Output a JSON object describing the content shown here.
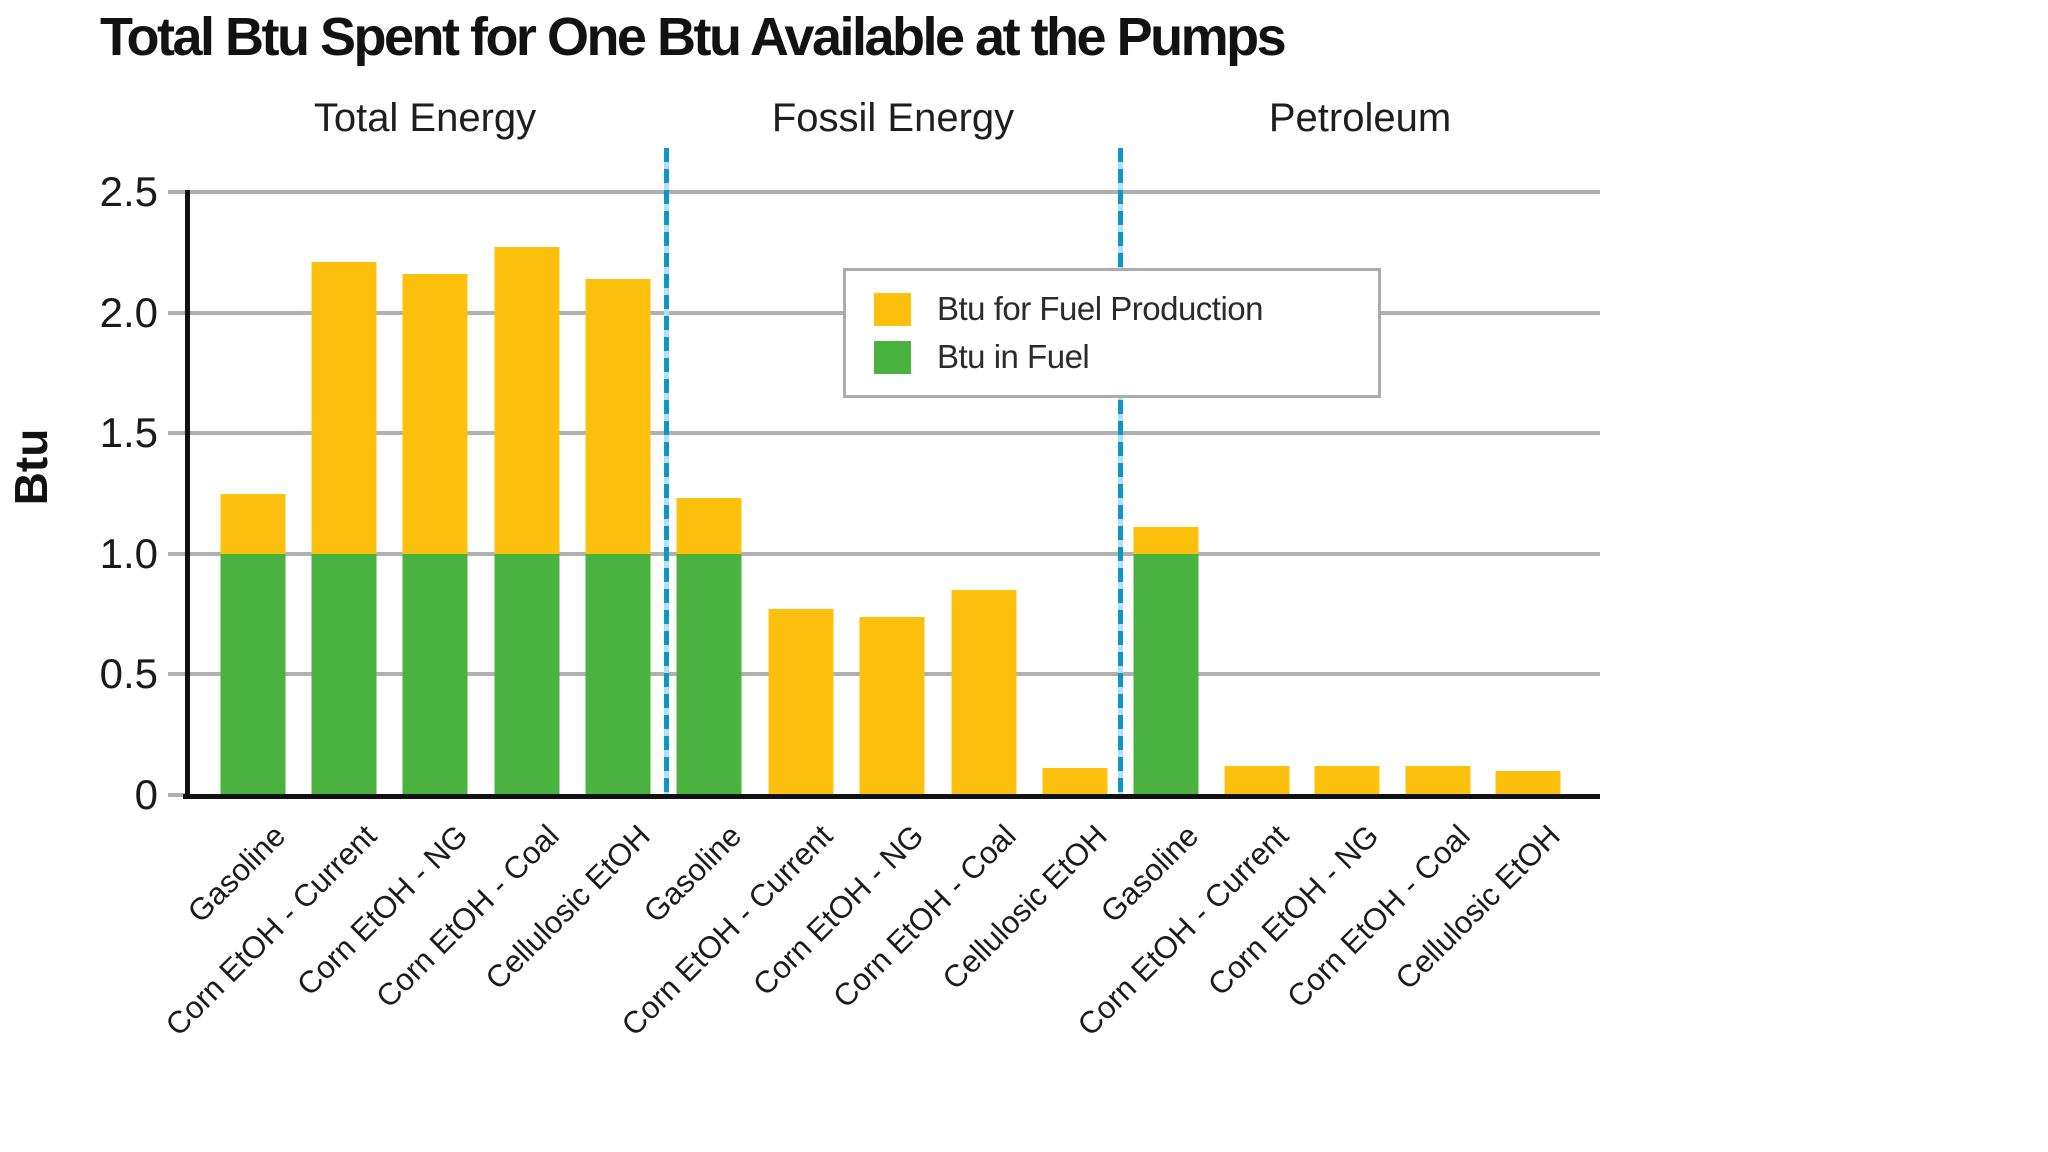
{
  "title": "Total Btu Spent for One Btu Available at the Pumps",
  "legend": {
    "items": [
      {
        "label": "Btu for Fuel Production",
        "color": "#fdc00d"
      },
      {
        "label": "Btu in Fuel",
        "color": "#4ab23e"
      }
    ]
  },
  "sections": [
    {
      "label": "Total Energy"
    },
    {
      "label": "Fossil Energy"
    },
    {
      "label": "Petroleum"
    }
  ],
  "colors": {
    "production_yellow": "#fdc00d",
    "fuel_green": "#4ab23e",
    "divider_teal": "#0e96c4",
    "gridline_gray": "#b0b0b0"
  },
  "chart_data": {
    "type": "bar",
    "stacked": true,
    "title": "Total Btu Spent for One Btu Available at the Pumps",
    "xlabel": "",
    "ylabel": "Btu",
    "ylim": [
      0,
      2.5
    ],
    "grid": true,
    "legend_position": "upper-center-right",
    "y_ticks": [
      {
        "value": 2.5,
        "label": "2.5"
      },
      {
        "value": 2.0,
        "label": "2.0"
      },
      {
        "value": 1.5,
        "label": "1.5"
      },
      {
        "value": 1.0,
        "label": "1.0"
      },
      {
        "value": 0.5,
        "label": "0.5"
      },
      {
        "value": 0.0,
        "label": "0"
      }
    ],
    "series_names": [
      "Btu in Fuel",
      "Btu for Fuel Production"
    ],
    "groups": [
      {
        "label": "Total Energy",
        "categories": [
          "Gasoline",
          "Corn EtOH - Current",
          "Corn EtOH - NG",
          "Corn EtOH - Coal",
          "Cellulosic EtOH"
        ],
        "btu_in_fuel": [
          1.0,
          1.0,
          1.0,
          1.0,
          1.0
        ],
        "btu_for_fuel_production": [
          0.25,
          1.21,
          1.16,
          1.27,
          1.14
        ],
        "totals": [
          1.25,
          2.21,
          2.16,
          2.27,
          2.14
        ]
      },
      {
        "label": "Fossil Energy",
        "categories": [
          "Gasoline",
          "Corn EtOH - Current",
          "Corn EtOH - NG",
          "Corn EtOH - Coal",
          "Cellulosic EtOH"
        ],
        "btu_in_fuel": [
          1.0,
          0,
          0,
          0,
          0
        ],
        "btu_for_fuel_production": [
          0.23,
          0.77,
          0.74,
          0.85,
          0.11
        ],
        "totals": [
          1.23,
          0.77,
          0.74,
          0.85,
          0.11
        ]
      },
      {
        "label": "Petroleum",
        "categories": [
          "Gasoline",
          "Corn EtOH - Current",
          "Corn EtOH - NG",
          "Corn EtOH - Coal",
          "Cellulosic EtOH"
        ],
        "btu_in_fuel": [
          1.0,
          0,
          0,
          0,
          0
        ],
        "btu_for_fuel_production": [
          0.11,
          0.12,
          0.12,
          0.12,
          0.1
        ],
        "totals": [
          1.11,
          0.12,
          0.12,
          0.12,
          0.1
        ]
      }
    ]
  }
}
